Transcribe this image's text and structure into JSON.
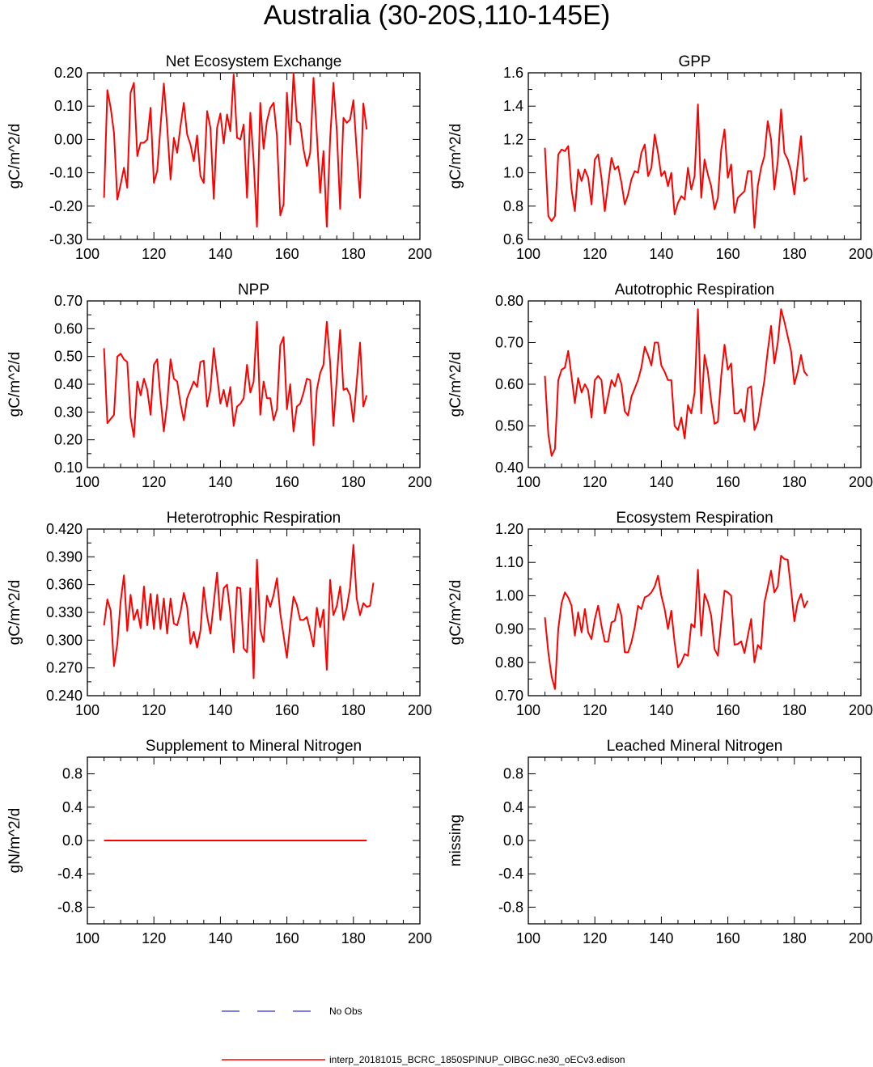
{
  "page": {
    "title": "Australia (30-20S,110-145E)",
    "line_color": "#ff0000",
    "obs_color": "#3333cc"
  },
  "legend": {
    "obs_label": "No Obs",
    "model_label": "interp_20181015_BCRC_1850SPINUP_OIBGC.ne30_oECv3.edison"
  },
  "chart_data": [
    {
      "type": "line",
      "title": "Net Ecosystem Exchange",
      "ylabel": "gC/m^2/d",
      "xlim": [
        100,
        200
      ],
      "ylim": [
        -0.3,
        0.2
      ],
      "xticks": [
        100,
        120,
        140,
        160,
        180,
        200
      ],
      "yticks": [
        -0.3,
        -0.2,
        -0.1,
        0.0,
        0.1,
        0.2
      ],
      "yticklabels": [
        "-0.30",
        "-0.20",
        "-0.10",
        "0.00",
        "0.10",
        "0.20"
      ],
      "x_start": 105,
      "values": [
        -0.175,
        0.148,
        0.095,
        0.02,
        -0.18,
        -0.135,
        -0.085,
        -0.145,
        0.14,
        0.17,
        -0.05,
        -0.01,
        -0.01,
        0.0,
        0.095,
        -0.13,
        -0.095,
        0.04,
        0.168,
        0.04,
        -0.12,
        0.005,
        -0.04,
        0.04,
        0.11,
        0.015,
        -0.015,
        -0.065,
        0.012,
        -0.11,
        -0.13,
        0.085,
        0.035,
        -0.178,
        0.035,
        0.078,
        -0.012,
        0.075,
        0.025,
        0.195,
        0.005,
        0.0,
        0.045,
        -0.175,
        0.08,
        -0.065,
        -0.262,
        0.11,
        -0.028,
        0.055,
        0.095,
        0.11,
        0.01,
        -0.228,
        -0.195,
        0.14,
        -0.015,
        0.198,
        0.055,
        0.048,
        -0.03,
        -0.08,
        -0.04,
        0.185,
        0.015,
        -0.16,
        -0.035,
        -0.262,
        0.0,
        0.17,
        0.025,
        -0.208,
        0.065,
        0.05,
        0.06,
        0.118,
        -0.035,
        -0.175,
        0.108,
        0.03
      ]
    },
    {
      "type": "line",
      "title": "GPP",
      "ylabel": "gC/m^2/d",
      "xlim": [
        100,
        200
      ],
      "ylim": [
        0.6,
        1.6
      ],
      "xticks": [
        100,
        120,
        140,
        160,
        180,
        200
      ],
      "yticks": [
        0.6,
        0.8,
        1.0,
        1.2,
        1.4,
        1.6
      ],
      "yticklabels": [
        "0.6",
        "0.8",
        "1.0",
        "1.2",
        "1.4",
        "1.6"
      ],
      "x_start": 105,
      "values": [
        1.15,
        0.74,
        0.71,
        0.74,
        1.11,
        1.14,
        1.13,
        1.16,
        0.9,
        0.77,
        1.02,
        0.95,
        1.02,
        0.97,
        0.81,
        1.08,
        1.11,
        0.97,
        0.77,
        0.93,
        1.09,
        1.02,
        1.04,
        0.94,
        0.81,
        0.87,
        0.96,
        1.01,
        1.0,
        1.12,
        1.17,
        0.98,
        1.03,
        1.23,
        1.12,
        0.98,
        1.01,
        0.92,
        1.0,
        0.75,
        0.82,
        0.86,
        0.84,
        1.03,
        0.9,
        0.98,
        1.41,
        0.85,
        1.08,
        0.99,
        0.92,
        0.78,
        0.85,
        1.14,
        1.26,
        0.97,
        1.05,
        0.76,
        0.85,
        0.87,
        0.89,
        1.01,
        1.01,
        0.67,
        0.92,
        1.03,
        1.1,
        1.31,
        1.2,
        0.9,
        1.07,
        1.38,
        1.12,
        1.08,
        1.01,
        0.87,
        1.05,
        1.22,
        0.95,
        0.97
      ]
    },
    {
      "type": "line",
      "title": "NPP",
      "ylabel": "gC/m^2/d",
      "xlim": [
        100,
        200
      ],
      "ylim": [
        0.1,
        0.7
      ],
      "xticks": [
        100,
        120,
        140,
        160,
        180,
        200
      ],
      "yticks": [
        0.1,
        0.2,
        0.3,
        0.4,
        0.5,
        0.6,
        0.7
      ],
      "yticklabels": [
        "0.10",
        "0.20",
        "0.30",
        "0.40",
        "0.50",
        "0.60",
        "0.70"
      ],
      "x_start": 105,
      "values": [
        0.53,
        0.26,
        0.275,
        0.29,
        0.5,
        0.51,
        0.49,
        0.48,
        0.28,
        0.21,
        0.41,
        0.36,
        0.42,
        0.38,
        0.29,
        0.47,
        0.49,
        0.35,
        0.23,
        0.33,
        0.49,
        0.42,
        0.41,
        0.33,
        0.27,
        0.35,
        0.38,
        0.41,
        0.39,
        0.48,
        0.485,
        0.32,
        0.38,
        0.53,
        0.43,
        0.33,
        0.38,
        0.32,
        0.39,
        0.25,
        0.32,
        0.33,
        0.35,
        0.47,
        0.37,
        0.41,
        0.625,
        0.29,
        0.41,
        0.35,
        0.35,
        0.27,
        0.31,
        0.54,
        0.57,
        0.31,
        0.4,
        0.23,
        0.32,
        0.33,
        0.37,
        0.42,
        0.415,
        0.18,
        0.38,
        0.44,
        0.47,
        0.625,
        0.48,
        0.25,
        0.42,
        0.595,
        0.38,
        0.385,
        0.36,
        0.265,
        0.41,
        0.55,
        0.32,
        0.36
      ]
    },
    {
      "type": "line",
      "title": "Autotrophic Respiration",
      "ylabel": "gC/m^2/d",
      "xlim": [
        100,
        200
      ],
      "ylim": [
        0.4,
        0.8
      ],
      "xticks": [
        100,
        120,
        140,
        160,
        180,
        200
      ],
      "yticks": [
        0.4,
        0.5,
        0.6,
        0.7,
        0.8
      ],
      "yticklabels": [
        "0.40",
        "0.50",
        "0.60",
        "0.70",
        "0.80"
      ],
      "x_start": 105,
      "values": [
        0.62,
        0.48,
        0.428,
        0.445,
        0.61,
        0.635,
        0.64,
        0.68,
        0.62,
        0.555,
        0.615,
        0.58,
        0.6,
        0.585,
        0.52,
        0.61,
        0.62,
        0.61,
        0.53,
        0.57,
        0.61,
        0.595,
        0.625,
        0.6,
        0.535,
        0.525,
        0.57,
        0.59,
        0.61,
        0.64,
        0.69,
        0.67,
        0.645,
        0.7,
        0.7,
        0.645,
        0.63,
        0.61,
        0.61,
        0.5,
        0.49,
        0.52,
        0.47,
        0.55,
        0.53,
        0.58,
        0.78,
        0.53,
        0.67,
        0.63,
        0.56,
        0.505,
        0.51,
        0.62,
        0.695,
        0.635,
        0.65,
        0.53,
        0.53,
        0.54,
        0.51,
        0.59,
        0.595,
        0.49,
        0.51,
        0.56,
        0.61,
        0.68,
        0.74,
        0.65,
        0.7,
        0.78,
        0.75,
        0.715,
        0.68,
        0.6,
        0.63,
        0.67,
        0.63,
        0.62
      ]
    },
    {
      "type": "line",
      "title": "Heterotrophic Respiration",
      "ylabel": "gC/m^2/d",
      "xlim": [
        100,
        200
      ],
      "ylim": [
        0.24,
        0.42
      ],
      "xticks": [
        100,
        120,
        140,
        160,
        180,
        200
      ],
      "yticks": [
        0.24,
        0.27,
        0.3,
        0.33,
        0.36,
        0.39,
        0.42
      ],
      "yticklabels": [
        "0.240",
        "0.270",
        "0.300",
        "0.330",
        "0.360",
        "0.390",
        "0.420"
      ],
      "x_start": 105,
      "values": [
        0.316,
        0.344,
        0.332,
        0.272,
        0.296,
        0.342,
        0.37,
        0.31,
        0.349,
        0.322,
        0.333,
        0.313,
        0.358,
        0.316,
        0.35,
        0.312,
        0.349,
        0.312,
        0.345,
        0.307,
        0.345,
        0.318,
        0.316,
        0.33,
        0.351,
        0.336,
        0.296,
        0.309,
        0.292,
        0.31,
        0.357,
        0.326,
        0.307,
        0.34,
        0.373,
        0.322,
        0.356,
        0.36,
        0.329,
        0.287,
        0.357,
        0.356,
        0.291,
        0.287,
        0.356,
        0.259,
        0.387,
        0.311,
        0.298,
        0.348,
        0.336,
        0.349,
        0.367,
        0.329,
        0.305,
        0.281,
        0.317,
        0.347,
        0.338,
        0.322,
        0.322,
        0.325,
        0.31,
        0.293,
        0.335,
        0.314,
        0.333,
        0.268,
        0.365,
        0.327,
        0.337,
        0.358,
        0.322,
        0.335,
        0.357,
        0.403,
        0.345,
        0.327,
        0.34,
        0.336,
        0.337,
        0.362
      ]
    },
    {
      "type": "line",
      "title": "Ecosystem Respiration",
      "ylabel": "gC/m^2/d",
      "xlim": [
        100,
        200
      ],
      "ylim": [
        0.7,
        1.2
      ],
      "xticks": [
        100,
        120,
        140,
        160,
        180,
        200
      ],
      "yticks": [
        0.7,
        0.8,
        0.9,
        1.0,
        1.1,
        1.2
      ],
      "yticklabels": [
        "0.70",
        "0.80",
        "0.90",
        "1.00",
        "1.10",
        "1.20"
      ],
      "x_start": 105,
      "values": [
        0.935,
        0.83,
        0.757,
        0.72,
        0.9,
        0.978,
        1.01,
        0.995,
        0.97,
        0.88,
        0.95,
        0.89,
        0.96,
        0.89,
        0.87,
        0.93,
        0.97,
        0.91,
        0.862,
        0.862,
        0.92,
        0.925,
        0.975,
        0.94,
        0.83,
        0.83,
        0.86,
        0.905,
        0.97,
        0.96,
        0.995,
        1.0,
        1.01,
        1.028,
        1.06,
        1.0,
        0.96,
        0.9,
        0.955,
        0.86,
        0.785,
        0.8,
        0.825,
        0.82,
        0.915,
        0.905,
        1.078,
        0.88,
        1.005,
        0.98,
        0.94,
        0.84,
        0.82,
        0.92,
        1.015,
        1.01,
        1.0,
        0.853,
        0.855,
        0.863,
        0.828,
        0.88,
        0.93,
        0.8,
        0.852,
        0.84,
        0.98,
        1.025,
        1.075,
        1.01,
        1.028,
        1.12,
        1.11,
        1.108,
        1.02,
        0.923,
        0.98,
        1.005,
        0.965,
        0.985
      ]
    },
    {
      "type": "line",
      "title": "Supplement to Mineral Nitrogen",
      "ylabel": "gN/m^2/d",
      "xlim": [
        100,
        200
      ],
      "ylim": [
        -1.0,
        1.0
      ],
      "xticks": [
        100,
        120,
        140,
        160,
        180,
        200
      ],
      "yticks": [
        -0.8,
        -0.4,
        0.0,
        0.4,
        0.8
      ],
      "yticklabels": [
        "-0.8",
        "-0.4",
        "0.0",
        "0.4",
        "0.8"
      ],
      "x_start": 105,
      "x_end": 184,
      "constant_value": 0.0
    },
    {
      "type": "line",
      "title": "Leached Mineral Nitrogen",
      "ylabel": "missing",
      "xlim": [
        100,
        200
      ],
      "ylim": [
        -1.0,
        1.0
      ],
      "xticks": [
        100,
        120,
        140,
        160,
        180,
        200
      ],
      "yticks": [
        -0.8,
        -0.4,
        0.0,
        0.4,
        0.8
      ],
      "yticklabels": [
        "-0.8",
        "-0.4",
        "0.0",
        "0.4",
        "0.8"
      ]
    }
  ]
}
